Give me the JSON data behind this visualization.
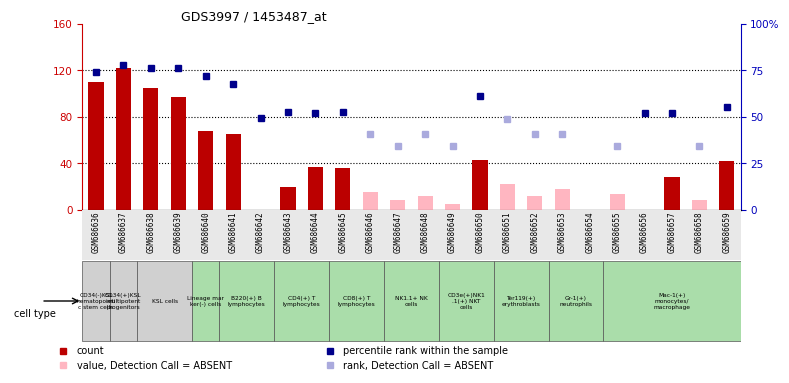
{
  "title": "GDS3997 / 1453487_at",
  "samples": [
    "GSM686636",
    "GSM686637",
    "GSM686638",
    "GSM686639",
    "GSM686640",
    "GSM686641",
    "GSM686642",
    "GSM686643",
    "GSM686644",
    "GSM686645",
    "GSM686646",
    "GSM686647",
    "GSM686648",
    "GSM686649",
    "GSM686650",
    "GSM686651",
    "GSM686652",
    "GSM686653",
    "GSM686654",
    "GSM686655",
    "GSM686656",
    "GSM686657",
    "GSM686658",
    "GSM686659"
  ],
  "count_values": [
    110,
    122,
    105,
    97,
    68,
    65,
    null,
    20,
    37,
    36,
    null,
    null,
    null,
    null,
    43,
    null,
    null,
    null,
    null,
    null,
    null,
    28,
    null,
    42
  ],
  "count_absent": [
    null,
    null,
    null,
    null,
    null,
    null,
    null,
    null,
    null,
    null,
    15,
    8,
    12,
    5,
    null,
    22,
    12,
    18,
    null,
    14,
    null,
    null,
    8,
    null
  ],
  "rank_values": [
    118,
    124,
    122,
    122,
    115,
    108,
    79,
    84,
    83,
    84,
    null,
    null,
    null,
    null,
    98,
    null,
    null,
    null,
    null,
    null,
    83,
    83,
    null,
    88
  ],
  "rank_absent": [
    null,
    null,
    null,
    null,
    null,
    null,
    null,
    null,
    null,
    null,
    65,
    55,
    65,
    55,
    null,
    78,
    65,
    65,
    null,
    55,
    null,
    null,
    55,
    null
  ],
  "cell_type_groups": [
    {
      "label": "CD34(-)KSL\nhematopoieti\nc stem cells",
      "start": 0,
      "end": 1,
      "color": "#d0d0d0"
    },
    {
      "label": "CD34(+)KSL\nmultipotent\nprogenitors",
      "start": 1,
      "end": 2,
      "color": "#d0d0d0"
    },
    {
      "label": "KSL cells",
      "start": 2,
      "end": 4,
      "color": "#d0d0d0"
    },
    {
      "label": "Lineage mar\nker(-) cells",
      "start": 4,
      "end": 5,
      "color": "#aaddaa"
    },
    {
      "label": "B220(+) B\nlymphocytes",
      "start": 5,
      "end": 7,
      "color": "#aaddaa"
    },
    {
      "label": "CD4(+) T\nlymphocytes",
      "start": 7,
      "end": 9,
      "color": "#aaddaa"
    },
    {
      "label": "CD8(+) T\nlymphocytes",
      "start": 9,
      "end": 11,
      "color": "#aaddaa"
    },
    {
      "label": "NK1.1+ NK\ncells",
      "start": 11,
      "end": 13,
      "color": "#aaddaa"
    },
    {
      "label": "CD3e(+)NK1\n.1(+) NKT\ncells",
      "start": 13,
      "end": 15,
      "color": "#aaddaa"
    },
    {
      "label": "Ter119(+)\nerythroblasts",
      "start": 15,
      "end": 17,
      "color": "#aaddaa"
    },
    {
      "label": "Gr-1(+)\nneutrophils",
      "start": 17,
      "end": 19,
      "color": "#aaddaa"
    },
    {
      "label": "Mac-1(+)\nmonocytes/\nmacrophage",
      "start": 19,
      "end": 24,
      "color": "#aaddaa"
    }
  ],
  "ylim_left": [
    0,
    160
  ],
  "ylim_right": [
    0,
    100
  ],
  "yticks_left": [
    0,
    40,
    80,
    120,
    160
  ],
  "yticks_right_labels": [
    "0",
    "25",
    "50",
    "75",
    "100%"
  ],
  "yticks_right_vals": [
    0,
    25,
    50,
    75,
    100
  ],
  "ylabel_left_color": "#cc0000",
  "ylabel_right_color": "#0000bb",
  "bar_color_present": "#bb0000",
  "bar_color_absent": "#ffb6c1",
  "dot_color_present": "#00008b",
  "dot_color_absent": "#aaaadd",
  "background_color": "#ffffff"
}
